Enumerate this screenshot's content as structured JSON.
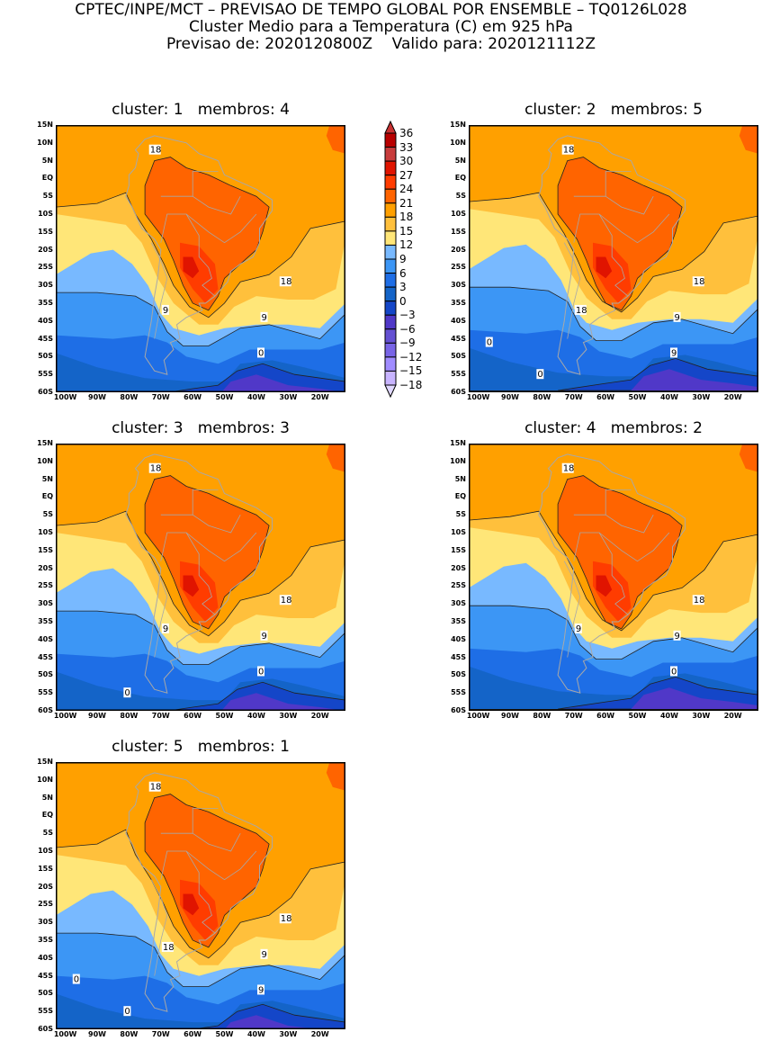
{
  "header": {
    "line1": "CPTEC/INPE/MCT – PREVISAO DE TEMPO GLOBAL POR ENSEMBLE – TQ0126L028",
    "line2": "Cluster Medio para a Temperatura (C) em 925 hPa",
    "line3": "Previsao de: 2020120800Z    Valido para: 2020121112Z"
  },
  "lat_labels": [
    "15N",
    "10N",
    "5N",
    "EQ",
    "5S",
    "10S",
    "15S",
    "20S",
    "25S",
    "30S",
    "35S",
    "40S",
    "45S",
    "50S",
    "55S",
    "60S"
  ],
  "lon_labels": [
    "100W",
    "90W",
    "80W",
    "70W",
    "60W",
    "50W",
    "40W",
    "30W",
    "20W"
  ],
  "panels": [
    {
      "title": "cluster: 1   membros: 4",
      "contour_labels": [
        "18",
        "18",
        "9",
        "9",
        "0"
      ]
    },
    {
      "title": "cluster: 2   membros: 5",
      "contour_labels": [
        "18",
        "18",
        "18",
        "9",
        "9",
        "0",
        "0"
      ]
    },
    {
      "title": "cluster: 3   membros: 3",
      "contour_labels": [
        "18",
        "18",
        "9",
        "9",
        "0",
        "0"
      ]
    },
    {
      "title": "cluster: 4   membros: 2",
      "contour_labels": [
        "18",
        "18",
        "9",
        "9",
        "0"
      ]
    },
    {
      "title": "cluster: 5   membros: 1",
      "contour_labels": [
        "18",
        "18",
        "18",
        "9",
        "9",
        "0",
        "0"
      ]
    }
  ],
  "colorbar": {
    "labels": [
      "36",
      "33",
      "30",
      "27",
      "24",
      "21",
      "18",
      "15",
      "12",
      "9",
      "6",
      "3",
      "0",
      "−3",
      "−6",
      "−9",
      "−12",
      "−15",
      "−18"
    ],
    "colors": [
      "#b80000",
      "#c83c3c",
      "#e01400",
      "#ff3c00",
      "#ff6400",
      "#ffa000",
      "#ffc03c",
      "#ffe678",
      "#78b9ff",
      "#3c96f5",
      "#1e6ee6",
      "#1464c8",
      "#1446c8",
      "#5038c8",
      "#6450d2",
      "#7864e6",
      "#a08cff",
      "#c8b4ff"
    ],
    "over_color": "#c83232",
    "under_color": "#e0d8ff"
  }
}
